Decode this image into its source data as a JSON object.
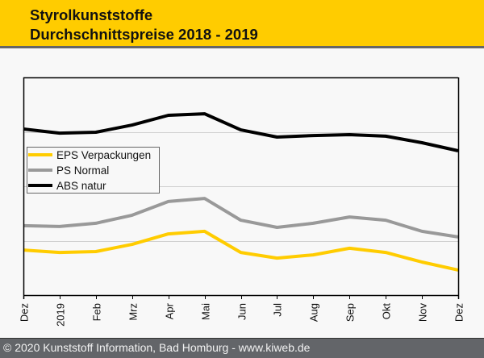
{
  "header": {
    "title_line1": "Styrolkunststoffe",
    "title_line2": "Durchschnittspreise 2018 - 2019",
    "background_color": "#FFCC00"
  },
  "footer": {
    "text": "© 2020 Kunststoff Information, Bad Homburg - www.kiweb.de"
  },
  "chart_data": {
    "type": "line",
    "title": "Styrolkunststoffe Durchschnittspreise 2018 - 2019",
    "xlabel": "",
    "ylabel": "",
    "y_units": "relative index (no y-axis labels shown; 0 = axis bottom, 100 = plot top)",
    "ylim": [
      0,
      100
    ],
    "y_gridlines": [
      25,
      50,
      75
    ],
    "grid": true,
    "legend_position": "left",
    "categories": [
      "Dez",
      "2019",
      "Feb",
      "Mrz",
      "Apr",
      "Mai",
      "Jun",
      "Jul",
      "Aug",
      "Sep",
      "Okt",
      "Nov",
      "Dez"
    ],
    "series": [
      {
        "name": "EPS Verpackungen",
        "color": "#FFCC00",
        "values": [
          20.7,
          19.6,
          20.0,
          23.3,
          28.1,
          29.3,
          19.6,
          17.0,
          18.5,
          21.5,
          19.6,
          15.2,
          11.5
        ]
      },
      {
        "name": "PS Normal",
        "color": "#999999",
        "values": [
          31.9,
          31.5,
          33.0,
          36.7,
          43.0,
          44.4,
          34.4,
          31.1,
          33.0,
          35.9,
          34.4,
          29.3,
          26.7
        ]
      },
      {
        "name": "ABS natur",
        "color": "#000000",
        "values": [
          76.3,
          74.4,
          74.8,
          78.1,
          82.6,
          83.3,
          75.9,
          72.6,
          73.3,
          73.7,
          73.0,
          70.0,
          66.3
        ]
      }
    ]
  }
}
